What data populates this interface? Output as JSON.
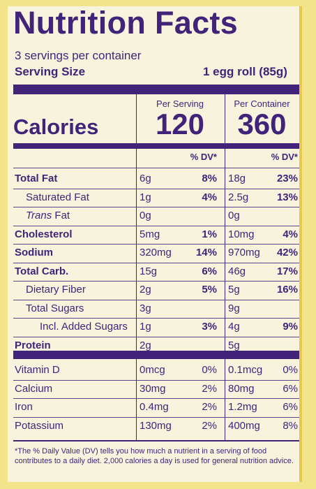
{
  "title": "Nutrition Facts",
  "servings": "3 servings per container",
  "serving_size": {
    "label": "Serving Size",
    "value": "1 egg roll (85g)"
  },
  "columns": {
    "per_serving": "Per Serving",
    "per_container": "Per Container"
  },
  "calories": {
    "label": "Calories",
    "per_serving": "120",
    "per_container": "360"
  },
  "dv_header": "% DV*",
  "nutrients": [
    {
      "label": "Total Fat",
      "bold": true,
      "s_amt": "6g",
      "s_dv": "8%",
      "c_amt": "18g",
      "c_dv": "23%"
    },
    {
      "label": "Saturated Fat",
      "indent": 1,
      "s_amt": "1g",
      "s_dv": "4%",
      "c_amt": "2.5g",
      "c_dv": "13%"
    },
    {
      "label_italic": "Trans",
      "label": " Fat",
      "indent": 1,
      "s_amt": "0g",
      "s_dv": "",
      "c_amt": "0g",
      "c_dv": ""
    },
    {
      "label": "Cholesterol",
      "bold": true,
      "s_amt": "5mg",
      "s_dv": "1%",
      "c_amt": "10mg",
      "c_dv": "4%"
    },
    {
      "label": "Sodium",
      "bold": true,
      "s_amt": "320mg",
      "s_dv": "14%",
      "c_amt": "970mg",
      "c_dv": "42%"
    },
    {
      "label": "Total Carb.",
      "bold": true,
      "s_amt": "15g",
      "s_dv": "6%",
      "c_amt": "46g",
      "c_dv": "17%"
    },
    {
      "label": "Dietary Fiber",
      "indent": 1,
      "s_amt": "2g",
      "s_dv": "5%",
      "c_amt": "5g",
      "c_dv": "16%"
    },
    {
      "label": "Total Sugars",
      "indent": 1,
      "s_amt": "3g",
      "s_dv": "",
      "c_amt": "9g",
      "c_dv": ""
    },
    {
      "label": "Incl. Added Sugars",
      "indent": 2,
      "s_amt": "1g",
      "s_dv": "3%",
      "c_amt": "4g",
      "c_dv": "9%"
    },
    {
      "label": "Protein",
      "bold": true,
      "s_amt": "2g",
      "s_dv": "",
      "c_amt": "5g",
      "c_dv": ""
    }
  ],
  "vitamins": [
    {
      "label": "Vitamin D",
      "s_amt": "0mcg",
      "s_dv": "0%",
      "c_amt": "0.1mcg",
      "c_dv": "0%"
    },
    {
      "label": "Calcium",
      "s_amt": "30mg",
      "s_dv": "2%",
      "c_amt": "80mg",
      "c_dv": "6%"
    },
    {
      "label": "Iron",
      "s_amt": "0.4mg",
      "s_dv": "2%",
      "c_amt": "1.2mg",
      "c_dv": "6%"
    },
    {
      "label": "Potassium",
      "s_amt": "130mg",
      "s_dv": "2%",
      "c_amt": "400mg",
      "c_dv": "8%"
    }
  ],
  "footnote": "*The % Daily Value (DV) tells you how much a nutrient in a serving of food contributes to a daily diet. 2,000 calories a day is used for general nutrition advice.",
  "colors": {
    "ink": "#42237a",
    "panel": "#f8f3dd",
    "package": "#f2e48a"
  }
}
